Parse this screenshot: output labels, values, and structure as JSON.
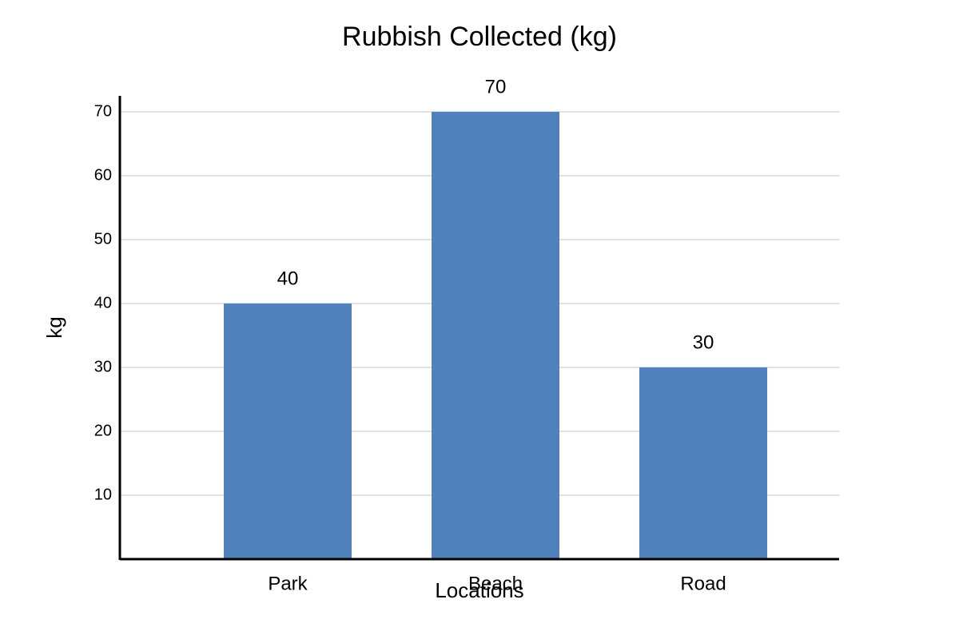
{
  "chart_data": {
    "type": "bar",
    "title": "Rubbish Collected (kg)",
    "x_label": "Locations",
    "y_label": "kg",
    "categories": [
      "Park",
      "Beach",
      "Road"
    ],
    "values": [
      40,
      70,
      30
    ],
    "color": "#4f81bd",
    "ylim": [
      0,
      72.5
    ],
    "yticks": [
      10,
      20,
      30,
      40,
      50,
      60,
      70
    ],
    "grid": true
  }
}
